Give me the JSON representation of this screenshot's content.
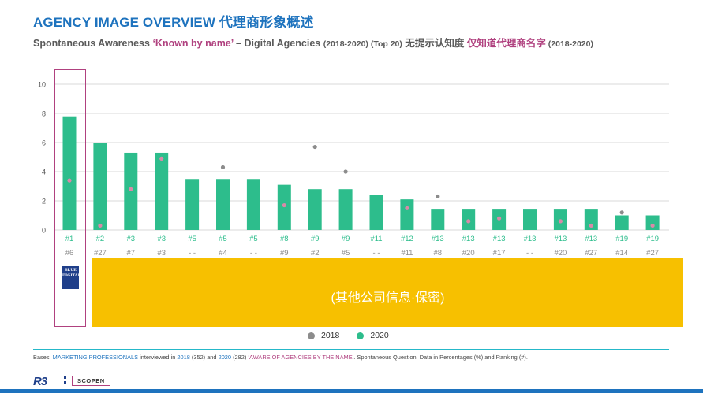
{
  "title": "AGENCY IMAGE OVERVIEW 代理商形象概述",
  "subtitle": {
    "part1": "Spontaneous Awareness ",
    "part2": "‘Known by name’",
    "part3": " – Digital Agencies ",
    "part4": "(2018-2020) (Top 20)",
    "part5": " 无提示认知度 ",
    "part6": "仅知道代理商名字",
    "part7": " (2018-2020)"
  },
  "chart_data": {
    "type": "bar",
    "ylim": [
      0,
      10
    ],
    "yticks": [
      "0",
      "2",
      "4",
      "6",
      "8",
      "10"
    ],
    "grid": true,
    "legend": [
      "2018",
      "2020"
    ],
    "legend_placement": "bottom-center",
    "series": [
      {
        "name": "2018",
        "kind": "dot",
        "values": [
          3.4,
          0.3,
          2.8,
          4.9,
          null,
          4.3,
          null,
          1.7,
          5.7,
          4.0,
          null,
          1.5,
          2.3,
          0.6,
          0.8,
          null,
          0.6,
          0.3,
          1.2,
          0.3
        ]
      },
      {
        "name": "2020",
        "kind": "bar",
        "values": [
          7.8,
          6.0,
          5.3,
          5.3,
          3.5,
          3.5,
          3.5,
          3.1,
          2.8,
          2.8,
          2.4,
          2.1,
          1.4,
          1.4,
          1.4,
          1.4,
          1.4,
          1.4,
          1.0,
          1.0
        ]
      }
    ],
    "rank_2020": [
      "#1",
      "#2",
      "#3",
      "#3",
      "#5",
      "#5",
      "#5",
      "#8",
      "#9",
      "#9",
      "#11",
      "#12",
      "#13",
      "#13",
      "#13",
      "#13",
      "#13",
      "#13",
      "#19",
      "#19"
    ],
    "rank_2018": [
      "#6",
      "#27",
      "#7",
      "#3",
      "- -",
      "#4",
      "- -",
      "#9",
      "#2",
      "#5",
      "- -",
      "#11",
      "#8",
      "#20",
      "#17",
      "- -",
      "#20",
      "#27",
      "#14",
      "#27"
    ]
  },
  "colors": {
    "bar": "#2dbd8c",
    "dot_2018_above": "#8c8c8c",
    "dot_2018_inside": "#d88aa8",
    "title": "#1e73be",
    "highlight": "#b0417f",
    "confidential_bg": "#f7c000"
  },
  "logo_text": "BLUE DIGITAL",
  "confidential_text": "(其他公司信息·保密)",
  "bases": {
    "t1": "Bases: ",
    "t2": "MARKETING PROFESSIONALS",
    "t3": " interviewed in ",
    "t4": "2018",
    "t5": " (352) and ",
    "t6": "2020",
    "t7": " (282) ",
    "t8": "‘AWARE OF AGENCIES BY THE NAME’",
    "t9": ". Spontaneous Question. Data in Percentages (%) and Ranking (#)."
  },
  "footer": {
    "r3": "R3",
    "scopen": "SCOPEN"
  }
}
